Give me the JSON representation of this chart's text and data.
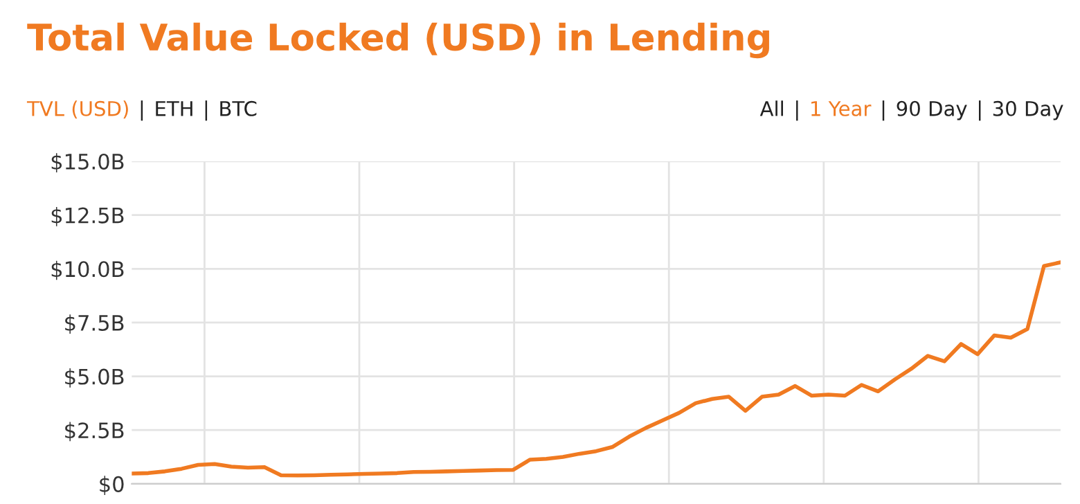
{
  "chart_data": {
    "type": "line",
    "title": "Total Value Locked (USD) in Lending",
    "annotations": [
      "TVL (USD)",
      "|",
      "ETH",
      "|",
      "BTC",
      "All",
      "|",
      "1 Year",
      "|",
      "90 Day",
      "|",
      "30 Day"
    ],
    "categories": [
      null,
      null,
      null,
      null,
      null,
      null,
      null,
      null,
      null,
      null,
      null,
      null,
      null,
      null,
      null,
      null,
      null,
      null,
      null,
      null,
      null,
      null,
      null,
      null,
      null,
      null,
      null,
      null,
      null,
      null,
      null,
      null,
      null,
      null,
      null,
      null,
      null,
      null,
      null,
      null,
      null,
      null,
      null,
      null,
      null,
      null,
      null,
      null,
      null,
      null,
      null,
      null,
      null,
      null,
      null,
      null,
      null
    ],
    "series": [
      {
        "color": "#f07a21",
        "values": [
          0.48,
          0.5,
          0.58,
          0.7,
          0.88,
          0.92,
          0.8,
          0.75,
          0.78,
          0.4,
          0.39,
          0.4,
          0.42,
          0.44,
          0.46,
          0.48,
          0.5,
          0.55,
          0.56,
          0.58,
          0.6,
          0.62,
          0.64,
          0.65,
          1.12,
          1.16,
          1.25,
          1.4,
          1.52,
          1.72,
          2.2,
          2.6,
          2.95,
          3.3,
          3.75,
          3.95,
          4.05,
          3.4,
          4.05,
          4.15,
          4.55,
          4.1,
          4.15,
          4.1,
          4.6,
          4.3,
          4.85,
          5.35,
          5.95,
          5.7,
          6.5,
          6.03,
          6.9,
          6.8,
          7.2,
          10.13,
          10.3
        ]
      }
    ],
    "ylim": [
      0,
      15
    ],
    "yticks": [
      {
        "value": 0,
        "label": "$0"
      },
      {
        "value": 2.5,
        "label": "$2.5B"
      },
      {
        "value": 5,
        "label": "$5.0B"
      },
      {
        "value": 7.5,
        "label": "$7.5B"
      },
      {
        "value": 10,
        "label": "$10.0B"
      },
      {
        "value": 12.5,
        "label": "$12.5B"
      },
      {
        "value": 15,
        "label": "$15.0B"
      }
    ],
    "tick_labels": "y",
    "grid": true,
    "legend": false
  }
}
